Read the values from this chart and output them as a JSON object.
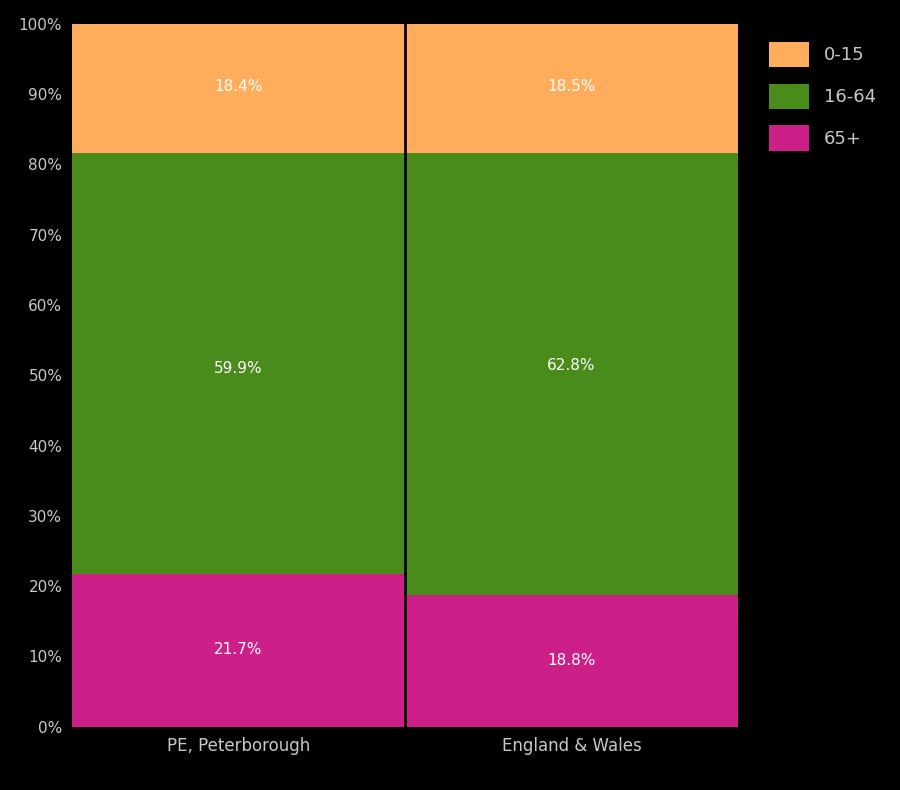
{
  "categories": [
    "PE, Peterborough",
    "England & Wales"
  ],
  "segments": {
    "65+": [
      21.7,
      18.8
    ],
    "16-64": [
      59.9,
      62.8
    ],
    "0-15": [
      18.4,
      18.5
    ]
  },
  "colors": {
    "0-15": "#FFAD5C",
    "16-64": "#4A8C1C",
    "65+": "#CC1F88"
  },
  "background_color": "#000000",
  "text_color": "#C8C8C8",
  "bar_width": 1.0,
  "ylim": [
    0,
    100
  ],
  "yticks": [
    0,
    10,
    20,
    30,
    40,
    50,
    60,
    70,
    80,
    90,
    100
  ],
  "ytick_labels": [
    "0%",
    "10%",
    "20%",
    "30%",
    "40%",
    "50%",
    "60%",
    "70%",
    "80%",
    "90%",
    "100%"
  ],
  "legend_labels": [
    "0-15",
    "16-64",
    "65+"
  ],
  "segment_order": [
    "65+",
    "16-64",
    "0-15"
  ],
  "label_positions": {
    "PE, Peterborough": {
      "0-15": 91.0,
      "16-64": 51.0,
      "65+": 11.0
    },
    "England & Wales": {
      "0-15": 91.0,
      "16-64": 51.4,
      "65+": 9.4
    }
  }
}
